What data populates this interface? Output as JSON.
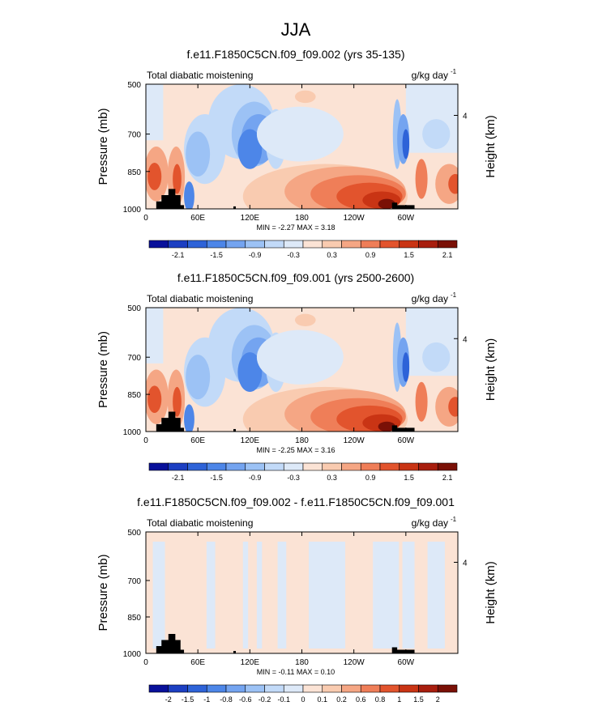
{
  "figure_title": "JJA",
  "chart_data": [
    {
      "type": "heatmap",
      "title": "f.e11.F1850C5CN.f09_f09.002 (yrs 35-135)",
      "left_string": "Total diabatic moistening",
      "units_main": "g/kg day",
      "units_exp": "-1",
      "ylabel": "Pressure (mb)",
      "ylabel_right": "Height (km)",
      "yticks": [
        "500",
        "700",
        "850",
        "1000"
      ],
      "yticks_right": [
        "4"
      ],
      "xticks": [
        "0",
        "60E",
        "120E",
        "180",
        "120W",
        "60W"
      ],
      "xlim": [
        0,
        360
      ],
      "ylim": [
        1000,
        500
      ],
      "stats": "MIN = -2.27  MAX =  3.18",
      "colorbar_labels": [
        "-2.1",
        "-1.5",
        "-0.9",
        "-0.3",
        "0.3",
        "0.9",
        "1.5",
        "2.1"
      ]
    },
    {
      "type": "heatmap",
      "title": "f.e11.F1850C5CN.f09_f09.001 (yrs 2500-2600)",
      "left_string": "Total diabatic moistening",
      "units_main": "g/kg day",
      "units_exp": "-1",
      "ylabel": "Pressure (mb)",
      "ylabel_right": "Height (km)",
      "yticks": [
        "500",
        "700",
        "850",
        "1000"
      ],
      "yticks_right": [
        "4"
      ],
      "xticks": [
        "0",
        "60E",
        "120E",
        "180",
        "120W",
        "60W"
      ],
      "xlim": [
        0,
        360
      ],
      "ylim": [
        1000,
        500
      ],
      "stats": "MIN = -2.25  MAX =  3.16",
      "colorbar_labels": [
        "-2.1",
        "-1.5",
        "-0.9",
        "-0.3",
        "0.3",
        "0.9",
        "1.5",
        "2.1"
      ]
    },
    {
      "type": "heatmap",
      "title": "f.e11.F1850C5CN.f09_f09.002 - f.e11.F1850C5CN.f09_f09.001",
      "left_string": "Total diabatic moistening",
      "units_main": "g/kg day",
      "units_exp": "-1",
      "ylabel": "Pressure (mb)",
      "ylabel_right": "Height (km)",
      "yticks": [
        "500",
        "700",
        "850",
        "1000"
      ],
      "yticks_right": [
        "4"
      ],
      "xticks": [
        "0",
        "60E",
        "120E",
        "180",
        "120W",
        "60W"
      ],
      "xlim": [
        0,
        360
      ],
      "ylim": [
        1000,
        500
      ],
      "stats": "MIN = -0.11  MAX =  0.10",
      "colorbar_labels": [
        "-2",
        "-1.5",
        "-1",
        "-0.8",
        "-0.6",
        "-0.2",
        "-0.1",
        "0",
        "0.1",
        "0.2",
        "0.6",
        "0.8",
        "1",
        "1.5",
        "2"
      ]
    }
  ],
  "colors": {
    "cb_main": [
      "#08109a",
      "#1c3fc2",
      "#2e63d8",
      "#4d86e8",
      "#74a4f0",
      "#9cc2f5",
      "#c2daf8",
      "#dde9f8",
      "#fbe3d5",
      "#f9cbb0",
      "#f5a684",
      "#ef7e58",
      "#e2542d",
      "#c93414",
      "#a81e0e",
      "#7a1006"
    ],
    "cb_diff": [
      "#08109a",
      "#1c3fc2",
      "#2e63d8",
      "#4d86e8",
      "#74a4f0",
      "#9cc2f5",
      "#c2daf8",
      "#dde9f8",
      "#fbe3d5",
      "#f9cbb0",
      "#f5a684",
      "#ef7e58",
      "#e2542d",
      "#c93414",
      "#a81e0e",
      "#7a1006"
    ]
  }
}
